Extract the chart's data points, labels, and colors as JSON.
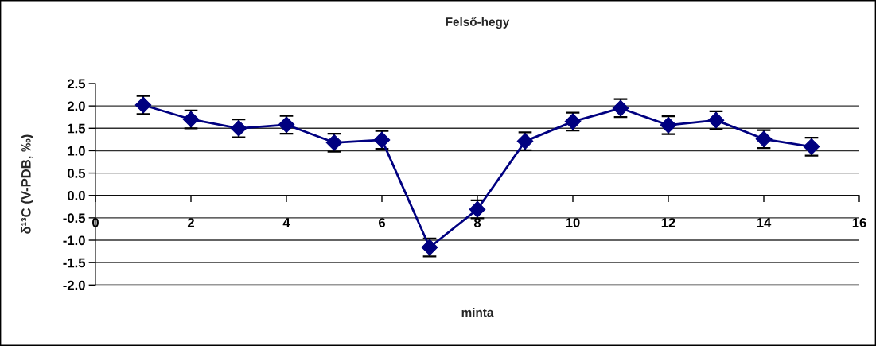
{
  "chart_data": {
    "type": "line",
    "title": "Felső-hegy",
    "xlabel": "minta",
    "ylabel": "δ¹³C (V-PDB, ‰)",
    "x": [
      1,
      2,
      3,
      4,
      5,
      6,
      7,
      8,
      9,
      10,
      11,
      12,
      13,
      14,
      15
    ],
    "series": [
      {
        "color": "#000080",
        "values": [
          2.02,
          1.7,
          1.5,
          1.58,
          1.18,
          1.24,
          -1.16,
          -0.31,
          1.21,
          1.65,
          1.95,
          1.57,
          1.68,
          1.26,
          1.09
        ],
        "errors": [
          0.2,
          0.2,
          0.2,
          0.2,
          0.2,
          0.2,
          0.2,
          0.2,
          0.2,
          0.2,
          0.2,
          0.2,
          0.2,
          0.2,
          0.2
        ]
      }
    ],
    "xlim": [
      0,
      16
    ],
    "xticks": [
      0,
      2,
      4,
      6,
      8,
      10,
      12,
      14,
      16
    ],
    "ylim": [
      -2,
      2.5
    ],
    "yticks": [
      {
        "value": -2,
        "label": "-2.0"
      },
      {
        "value": -1.5,
        "label": "-1.5"
      },
      {
        "value": -1,
        "label": "-1.0"
      },
      {
        "value": -0.5,
        "label": "-0.5"
      },
      {
        "value": 0,
        "label": "0.0"
      },
      {
        "value": 0.5,
        "label": "0.5"
      },
      {
        "value": 1,
        "label": "1.0"
      },
      {
        "value": 1.5,
        "label": "1.5"
      },
      {
        "value": 2,
        "label": "2.0"
      },
      {
        "value": 2.5,
        "label": "2.5"
      }
    ],
    "grid": "y",
    "marker": "diamond",
    "line_style": "solid"
  }
}
